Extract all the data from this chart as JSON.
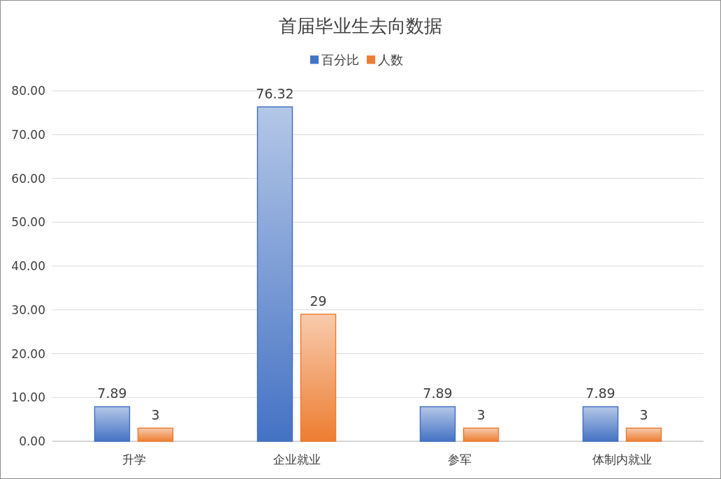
{
  "chart_data": {
    "type": "bar",
    "title": "首届毕业生去向数据",
    "categories": [
      "升学",
      "企业就业",
      "参军",
      "体制内就业"
    ],
    "series": [
      {
        "name": "百分比",
        "color": "#4472c4",
        "values": [
          7.89,
          76.32,
          7.89,
          7.89
        ]
      },
      {
        "name": "人数",
        "color": "#ed7d31",
        "values": [
          3,
          29,
          3,
          3
        ]
      }
    ],
    "ylim": [
      0,
      80
    ],
    "yticks": [
      {
        "value": 0,
        "label": "0.00"
      },
      {
        "value": 10,
        "label": "10.00"
      },
      {
        "value": 20,
        "label": "20.00"
      },
      {
        "value": 30,
        "label": "30.00"
      },
      {
        "value": 40,
        "label": "40.00"
      },
      {
        "value": 50,
        "label": "50.00"
      },
      {
        "value": 60,
        "label": "60.00"
      },
      {
        "value": 70,
        "label": "70.00"
      },
      {
        "value": 80,
        "label": "80.00"
      }
    ],
    "grid": "y",
    "legend": "top",
    "data_labels": true
  }
}
